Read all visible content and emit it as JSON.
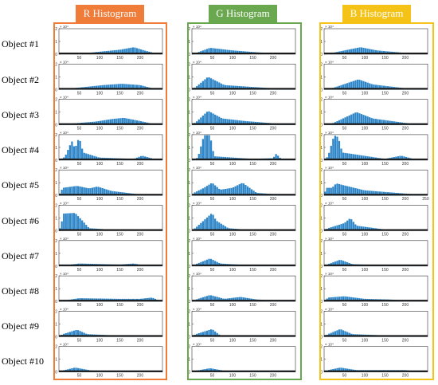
{
  "headers": {
    "r": "R Histogram",
    "g": "G Histogram",
    "b": "B Histogram"
  },
  "row_labels": [
    "Object #1",
    "Object #2",
    "Object #3",
    "Object #4",
    "Object #5",
    "Object #6",
    "Object #7",
    "Object #8",
    "Object #9",
    "Object #10"
  ],
  "colors": {
    "bar": "#2e86c8",
    "r_border": "#f07c3a",
    "g_border": "#6aa84f",
    "b_border": "#f5c218"
  },
  "chart_data": {
    "type": "bar",
    "exponent_label": "× 10⁴",
    "xlim": [
      0,
      255
    ],
    "ylim": [
      0,
      2
    ],
    "x_ticks": [
      50,
      100,
      150,
      200
    ],
    "x_ticks_wide": [
      50,
      100,
      150,
      200,
      250
    ],
    "y_ticks": [
      0,
      1,
      2
    ],
    "histograms": {
      "R": [
        [
          [
            70,
            0.1
          ],
          [
            150,
            0.35
          ],
          [
            185,
            0.55
          ],
          [
            210,
            0.3
          ],
          [
            245,
            0.02
          ]
        ],
        [
          [
            40,
            0.12
          ],
          [
            110,
            0.35
          ],
          [
            155,
            0.45
          ],
          [
            200,
            0.35
          ],
          [
            240,
            0.02
          ]
        ],
        [
          [
            30,
            0.1
          ],
          [
            90,
            0.25
          ],
          [
            130,
            0.45
          ],
          [
            160,
            0.55
          ],
          [
            200,
            0.3
          ],
          [
            240,
            0.02
          ]
        ],
        [
          [
            15,
            0.25
          ],
          [
            32,
            1.5
          ],
          [
            40,
            0.9
          ],
          [
            50,
            1.8
          ],
          [
            60,
            0.6
          ],
          [
            100,
            0.2
          ],
          [
            185,
            0.1
          ],
          [
            205,
            0.35
          ],
          [
            240,
            0.05
          ]
        ],
        [
          [
            10,
            0.6
          ],
          [
            45,
            0.75
          ],
          [
            75,
            0.55
          ],
          [
            95,
            0.7
          ],
          [
            130,
            0.35
          ],
          [
            200,
            0.08
          ],
          [
            240,
            0.02
          ]
        ],
        [
          [
            5,
            0.4
          ],
          [
            12,
            1.35
          ],
          [
            40,
            1.4
          ],
          [
            55,
            0.9
          ],
          [
            75,
            0.2
          ],
          [
            150,
            0.05
          ],
          [
            240,
            0.02
          ]
        ],
        [
          [
            20,
            0.08
          ],
          [
            50,
            0.2
          ],
          [
            150,
            0.12
          ],
          [
            185,
            0.2
          ],
          [
            210,
            0.05
          ],
          [
            240,
            0.02
          ]
        ],
        [
          [
            20,
            0.1
          ],
          [
            50,
            0.25
          ],
          [
            150,
            0.2
          ],
          [
            200,
            0.2
          ],
          [
            230,
            0.3
          ],
          [
            245,
            0.1
          ]
        ],
        [
          [
            10,
            0.2
          ],
          [
            45,
            0.55
          ],
          [
            70,
            0.2
          ],
          [
            150,
            0.08
          ],
          [
            240,
            0.02
          ]
        ],
        [
          [
            10,
            0.12
          ],
          [
            40,
            0.35
          ],
          [
            80,
            0.12
          ],
          [
            150,
            0.08
          ],
          [
            240,
            0.02
          ]
        ]
      ],
      "G": [
        [
          [
            15,
            0.15
          ],
          [
            45,
            0.5
          ],
          [
            100,
            0.3
          ],
          [
            160,
            0.15
          ],
          [
            240,
            0.02
          ]
        ],
        [
          [
            10,
            0.2
          ],
          [
            40,
            1.0
          ],
          [
            80,
            0.35
          ],
          [
            150,
            0.2
          ],
          [
            240,
            0.02
          ]
        ],
        [
          [
            10,
            0.2
          ],
          [
            40,
            1.1
          ],
          [
            75,
            0.5
          ],
          [
            130,
            0.3
          ],
          [
            240,
            0.02
          ]
        ],
        [
          [
            15,
            0.2
          ],
          [
            30,
            1.95
          ],
          [
            45,
            1.95
          ],
          [
            55,
            0.3
          ],
          [
            150,
            0.1
          ],
          [
            200,
            0.15
          ],
          [
            208,
            0.5
          ],
          [
            220,
            0.1
          ],
          [
            240,
            0.02
          ]
        ],
        [
          [
            5,
            0.2
          ],
          [
            30,
            0.6
          ],
          [
            50,
            1.0
          ],
          [
            70,
            0.45
          ],
          [
            100,
            0.6
          ],
          [
            125,
            1.0
          ],
          [
            160,
            0.2
          ],
          [
            240,
            0.02
          ]
        ],
        [
          [
            10,
            0.25
          ],
          [
            50,
            1.4
          ],
          [
            60,
            0.8
          ],
          [
            90,
            0.2
          ],
          [
            150,
            0.05
          ],
          [
            240,
            0.02
          ]
        ],
        [
          [
            10,
            0.15
          ],
          [
            45,
            0.6
          ],
          [
            70,
            0.2
          ],
          [
            150,
            0.05
          ],
          [
            240,
            0.02
          ]
        ],
        [
          [
            15,
            0.2
          ],
          [
            45,
            0.5
          ],
          [
            80,
            0.2
          ],
          [
            120,
            0.35
          ],
          [
            160,
            0.15
          ],
          [
            240,
            0.02
          ]
        ],
        [
          [
            10,
            0.2
          ],
          [
            50,
            0.6
          ],
          [
            70,
            0.1
          ],
          [
            160,
            0.05
          ],
          [
            240,
            0.02
          ]
        ],
        [
          [
            10,
            0.1
          ],
          [
            45,
            0.3
          ],
          [
            80,
            0.1
          ],
          [
            150,
            0.1
          ],
          [
            240,
            0.02
          ]
        ]
      ],
      "B": [
        [
          [
            20,
            0.1
          ],
          [
            90,
            0.55
          ],
          [
            130,
            0.3
          ],
          [
            200,
            0.1
          ],
          [
            240,
            0.02
          ]
        ],
        [
          [
            20,
            0.1
          ],
          [
            85,
            0.8
          ],
          [
            120,
            0.4
          ],
          [
            200,
            0.1
          ],
          [
            240,
            0.02
          ]
        ],
        [
          [
            20,
            0.1
          ],
          [
            80,
            1.0
          ],
          [
            120,
            0.5
          ],
          [
            200,
            0.15
          ],
          [
            240,
            0.02
          ]
        ],
        [
          [
            10,
            0.3
          ],
          [
            25,
            1.95
          ],
          [
            35,
            1.8
          ],
          [
            45,
            0.6
          ],
          [
            150,
            0.1
          ],
          [
            190,
            0.35
          ],
          [
            220,
            0.1
          ],
          [
            240,
            0.02
          ]
        ],
        [
          [
            5,
            0.6
          ],
          [
            20,
            0.6
          ],
          [
            30,
            0.95
          ],
          [
            55,
            0.75
          ],
          [
            100,
            0.4
          ],
          [
            180,
            0.2
          ],
          [
            240,
            0.05
          ]
        ],
        [
          [
            10,
            0.2
          ],
          [
            50,
            0.6
          ],
          [
            65,
            1.0
          ],
          [
            80,
            0.4
          ],
          [
            150,
            0.1
          ],
          [
            240,
            0.02
          ]
        ],
        [
          [
            10,
            0.15
          ],
          [
            40,
            0.5
          ],
          [
            70,
            0.15
          ],
          [
            150,
            0.05
          ],
          [
            240,
            0.02
          ]
        ],
        [
          [
            10,
            0.3
          ],
          [
            50,
            0.4
          ],
          [
            100,
            0.2
          ],
          [
            160,
            0.15
          ],
          [
            240,
            0.02
          ]
        ],
        [
          [
            10,
            0.2
          ],
          [
            40,
            0.6
          ],
          [
            70,
            0.2
          ],
          [
            150,
            0.1
          ],
          [
            240,
            0.02
          ]
        ],
        [
          [
            10,
            0.15
          ],
          [
            40,
            0.35
          ],
          [
            80,
            0.15
          ],
          [
            200,
            0.15
          ],
          [
            240,
            0.02
          ]
        ]
      ]
    }
  }
}
